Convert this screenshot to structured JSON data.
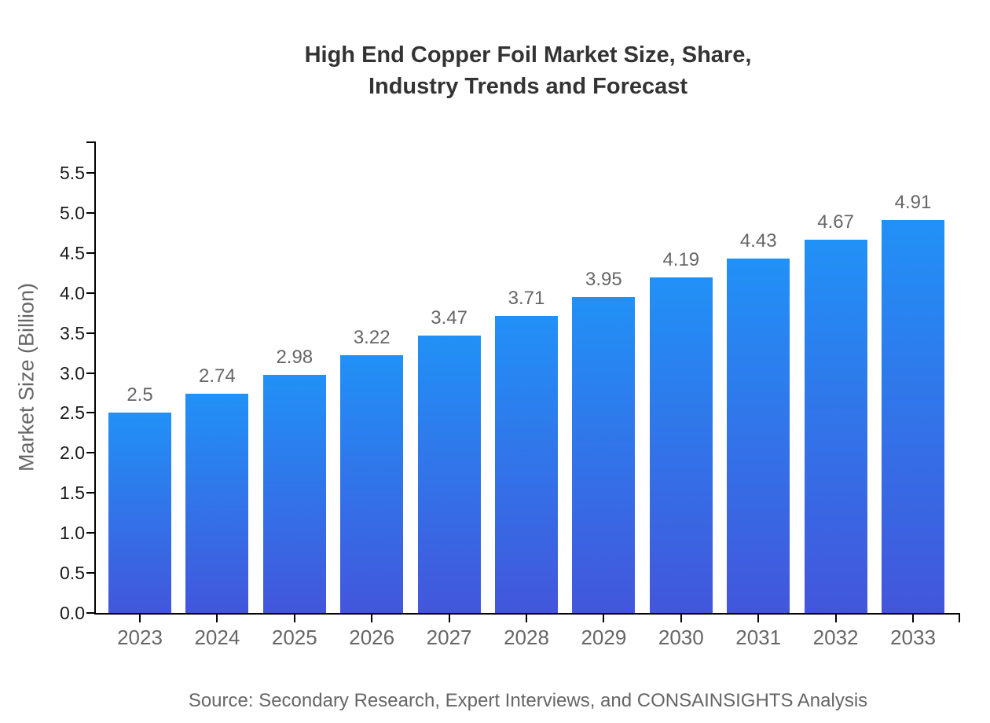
{
  "title": {
    "line1": "High End Copper Foil Market Size, Share,",
    "line2": "Industry Trends and Forecast"
  },
  "chart_data": {
    "type": "bar",
    "title": "High End Copper Foil Market Size, Share, Industry Trends and Forecast",
    "categories": [
      "2023",
      "2024",
      "2025",
      "2026",
      "2027",
      "2028",
      "2029",
      "2030",
      "2031",
      "2032",
      "2033"
    ],
    "values": [
      2.5,
      2.74,
      2.98,
      3.22,
      3.47,
      3.71,
      3.95,
      4.19,
      4.43,
      4.67,
      4.91
    ],
    "value_labels": [
      "2.5",
      "2.74",
      "2.98",
      "3.22",
      "3.47",
      "3.71",
      "3.95",
      "4.19",
      "4.43",
      "4.67",
      "4.91"
    ],
    "xlabel": "",
    "ylabel": "Market Size (Billion)",
    "ylim": [
      0,
      5.9
    ],
    "yticks": [
      0.0,
      0.5,
      1.0,
      1.5,
      2.0,
      2.5,
      3.0,
      3.5,
      4.0,
      4.5,
      5.0,
      5.5
    ],
    "grid": false,
    "legend": false,
    "bar_gradient": {
      "top": "#2191F6",
      "bottom": "#4356DB"
    }
  },
  "source": "Source: Secondary Research, Expert Interviews, and CONSAINSIGHTS Analysis",
  "colors": {
    "background": "#ffffff",
    "title_text": "#333333",
    "axis": "#000000",
    "y_tick_label": "#1a1a1a",
    "muted_text": "#666666",
    "bar_top": "#2191F6",
    "bar_bottom": "#4356DB"
  }
}
